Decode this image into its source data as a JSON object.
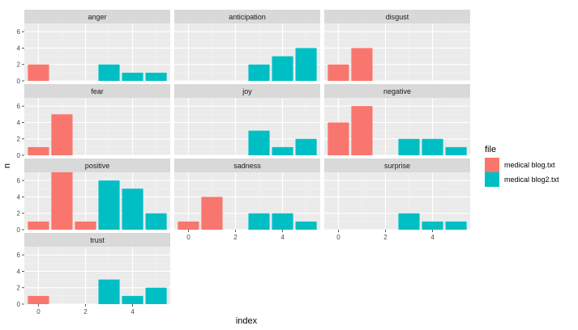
{
  "chart_data": {
    "type": "bar",
    "layout": "facet_wrap",
    "xlabel": "index",
    "ylabel": "n",
    "x_ticks": [
      0,
      2,
      4
    ],
    "y_ticks": [
      0,
      2,
      4,
      6
    ],
    "xlim": [
      -0.6,
      5.6
    ],
    "ylim": [
      0,
      7.0
    ],
    "grid": true,
    "legend_position": "right",
    "legend": {
      "title": "file",
      "entries": [
        {
          "name": "medical blog.txt",
          "color": "#F8766D"
        },
        {
          "name": "medical blog2.txt",
          "color": "#00BFC4"
        }
      ]
    },
    "facets": [
      {
        "name": "anger",
        "bars": [
          {
            "x": 0,
            "n": 2,
            "file": "medical blog.txt"
          },
          {
            "x": 3,
            "n": 2,
            "file": "medical blog2.txt"
          },
          {
            "x": 4,
            "n": 1,
            "file": "medical blog2.txt"
          },
          {
            "x": 5,
            "n": 1,
            "file": "medical blog2.txt"
          }
        ]
      },
      {
        "name": "anticipation",
        "bars": [
          {
            "x": 3,
            "n": 2,
            "file": "medical blog2.txt"
          },
          {
            "x": 4,
            "n": 3,
            "file": "medical blog2.txt"
          },
          {
            "x": 5,
            "n": 4,
            "file": "medical blog2.txt"
          }
        ]
      },
      {
        "name": "disgust",
        "bars": [
          {
            "x": 0,
            "n": 2,
            "file": "medical blog.txt"
          },
          {
            "x": 1,
            "n": 4,
            "file": "medical blog.txt"
          }
        ]
      },
      {
        "name": "fear",
        "bars": [
          {
            "x": 0,
            "n": 1,
            "file": "medical blog.txt"
          },
          {
            "x": 1,
            "n": 5,
            "file": "medical blog.txt"
          }
        ]
      },
      {
        "name": "joy",
        "bars": [
          {
            "x": 3,
            "n": 3,
            "file": "medical blog2.txt"
          },
          {
            "x": 4,
            "n": 1,
            "file": "medical blog2.txt"
          },
          {
            "x": 5,
            "n": 2,
            "file": "medical blog2.txt"
          }
        ]
      },
      {
        "name": "negative",
        "bars": [
          {
            "x": 0,
            "n": 4,
            "file": "medical blog.txt"
          },
          {
            "x": 1,
            "n": 6,
            "file": "medical blog.txt"
          },
          {
            "x": 3,
            "n": 2,
            "file": "medical blog2.txt"
          },
          {
            "x": 4,
            "n": 2,
            "file": "medical blog2.txt"
          },
          {
            "x": 5,
            "n": 1,
            "file": "medical blog2.txt"
          }
        ]
      },
      {
        "name": "positive",
        "bars": [
          {
            "x": 0,
            "n": 1,
            "file": "medical blog.txt"
          },
          {
            "x": 1,
            "n": 7,
            "file": "medical blog.txt"
          },
          {
            "x": 2,
            "n": 1,
            "file": "medical blog.txt"
          },
          {
            "x": 3,
            "n": 6,
            "file": "medical blog2.txt"
          },
          {
            "x": 4,
            "n": 5,
            "file": "medical blog2.txt"
          },
          {
            "x": 5,
            "n": 2,
            "file": "medical blog2.txt"
          }
        ]
      },
      {
        "name": "sadness",
        "bars": [
          {
            "x": 0,
            "n": 1,
            "file": "medical blog.txt"
          },
          {
            "x": 1,
            "n": 4,
            "file": "medical blog.txt"
          },
          {
            "x": 3,
            "n": 2,
            "file": "medical blog2.txt"
          },
          {
            "x": 4,
            "n": 2,
            "file": "medical blog2.txt"
          },
          {
            "x": 5,
            "n": 1,
            "file": "medical blog2.txt"
          }
        ]
      },
      {
        "name": "surprise",
        "bars": [
          {
            "x": 3,
            "n": 2,
            "file": "medical blog2.txt"
          },
          {
            "x": 4,
            "n": 1,
            "file": "medical blog2.txt"
          },
          {
            "x": 5,
            "n": 1,
            "file": "medical blog2.txt"
          }
        ]
      },
      {
        "name": "trust",
        "bars": [
          {
            "x": 0,
            "n": 1,
            "file": "medical blog.txt"
          },
          {
            "x": 3,
            "n": 3,
            "file": "medical blog2.txt"
          },
          {
            "x": 4,
            "n": 1,
            "file": "medical blog2.txt"
          },
          {
            "x": 5,
            "n": 2,
            "file": "medical blog2.txt"
          }
        ]
      }
    ]
  }
}
